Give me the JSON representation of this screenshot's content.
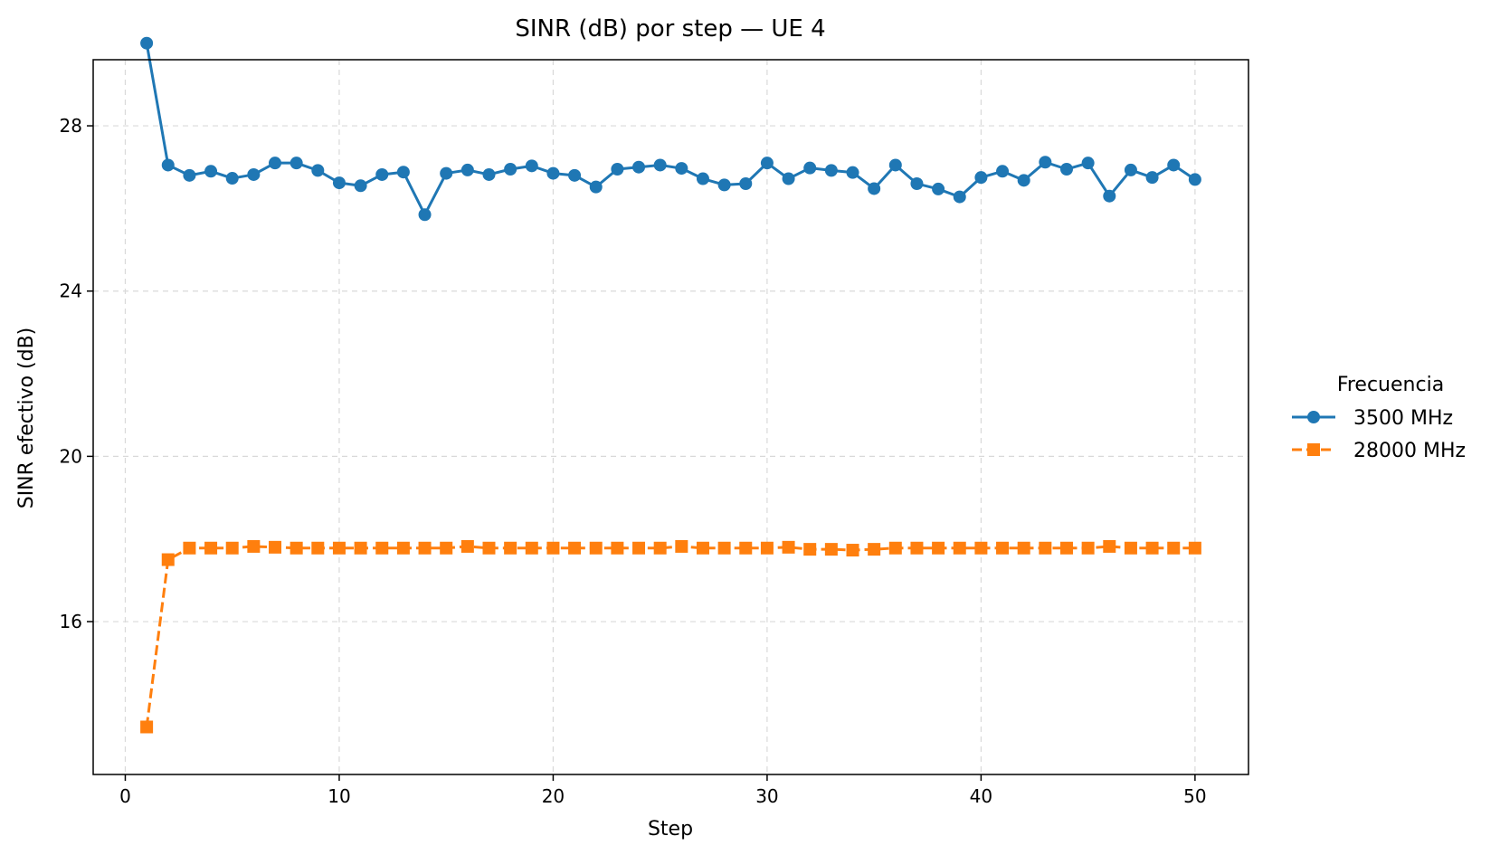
{
  "chart_data": {
    "type": "line",
    "title": "SINR (dB) por step — UE 4",
    "xlabel": "Step",
    "ylabel": "SINR efectivo (dB)",
    "xlim": [
      -1.5,
      52.5
    ],
    "ylim": [
      12.3,
      29.6
    ],
    "xticks": [
      0,
      10,
      20,
      30,
      40,
      50
    ],
    "yticks": [
      16,
      20,
      24,
      28
    ],
    "grid": true,
    "legend": {
      "title": "Frecuencia",
      "placement": "outside-right"
    },
    "x": [
      1,
      2,
      3,
      4,
      5,
      6,
      7,
      8,
      9,
      10,
      11,
      12,
      13,
      14,
      15,
      16,
      17,
      18,
      19,
      20,
      21,
      22,
      23,
      24,
      25,
      26,
      27,
      28,
      29,
      30,
      31,
      32,
      33,
      34,
      35,
      36,
      37,
      38,
      39,
      40,
      41,
      42,
      43,
      44,
      45,
      46,
      47,
      48,
      49,
      50
    ],
    "series": [
      {
        "name": "3500 MHz",
        "color": "#1f77b4",
        "marker": "circle",
        "linestyle": "solid",
        "values": [
          30.0,
          27.05,
          26.8,
          26.9,
          26.73,
          26.82,
          27.1,
          27.1,
          26.92,
          26.62,
          26.55,
          26.82,
          26.88,
          25.85,
          26.85,
          26.93,
          26.82,
          26.95,
          27.03,
          26.85,
          26.8,
          26.52,
          26.95,
          27.0,
          27.05,
          26.97,
          26.72,
          26.57,
          26.6,
          27.1,
          26.72,
          26.98,
          26.92,
          26.87,
          26.48,
          27.05,
          26.6,
          26.47,
          26.28,
          26.75,
          26.9,
          26.68,
          27.12,
          26.95,
          27.1,
          26.3,
          26.93,
          26.75,
          27.05,
          26.7
        ]
      },
      {
        "name": "28000 MHz",
        "color": "#ff7f0e",
        "marker": "square",
        "linestyle": "dashed",
        "values": [
          13.45,
          17.5,
          17.78,
          17.78,
          17.78,
          17.82,
          17.8,
          17.78,
          17.78,
          17.78,
          17.78,
          17.78,
          17.78,
          17.78,
          17.78,
          17.82,
          17.78,
          17.78,
          17.78,
          17.78,
          17.78,
          17.78,
          17.78,
          17.78,
          17.78,
          17.82,
          17.78,
          17.78,
          17.78,
          17.78,
          17.8,
          17.75,
          17.75,
          17.73,
          17.75,
          17.78,
          17.78,
          17.78,
          17.78,
          17.78,
          17.78,
          17.78,
          17.78,
          17.78,
          17.78,
          17.82,
          17.78,
          17.78,
          17.78,
          17.78
        ]
      }
    ]
  }
}
